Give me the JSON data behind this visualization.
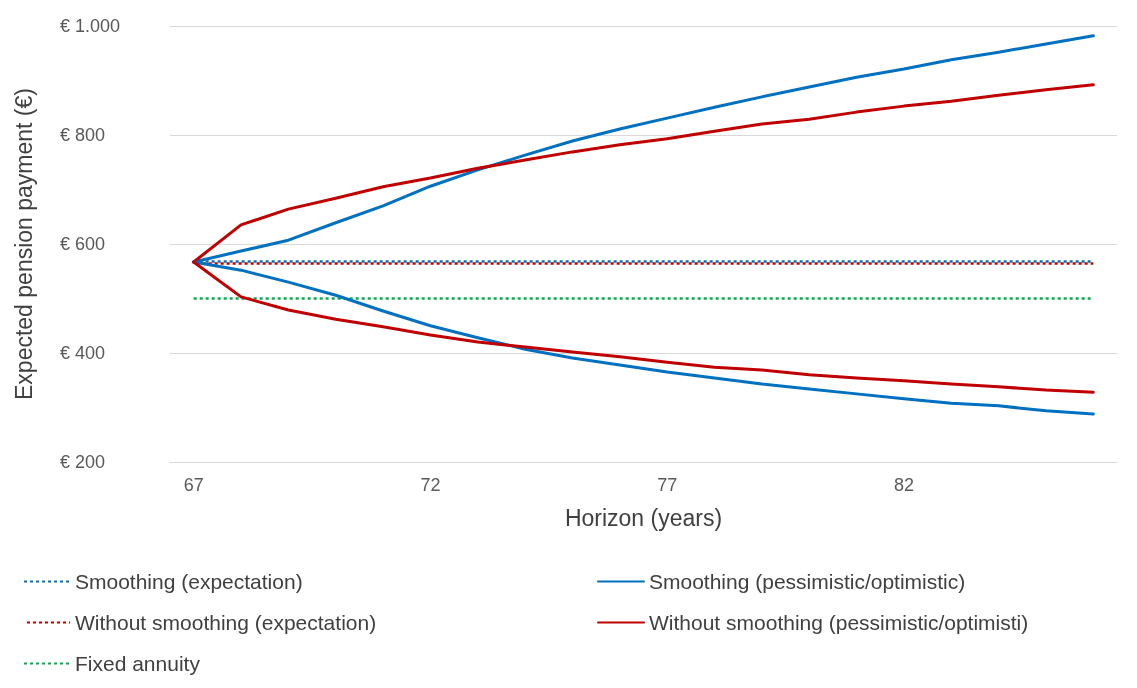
{
  "chart_data": {
    "type": "line",
    "xlabel": "Horizon (years)",
    "ylabel": "Expected pension payment (€)",
    "categories": [
      "67",
      null,
      null,
      null,
      null,
      "72",
      null,
      null,
      null,
      null,
      "77",
      null,
      null,
      null,
      null,
      "82",
      null,
      null,
      null,
      null
    ],
    "series": [
      {
        "name": "Smoothing (expectation)",
        "color": "#0070c0",
        "line_style": "dotted",
        "values": [
          568,
          568,
          568,
          568,
          568,
          568,
          568,
          568,
          568,
          568,
          568,
          568,
          568,
          568,
          568,
          568,
          568,
          568,
          568,
          568
        ]
      },
      {
        "name": "Smoothing (pessimistic/optimistic)",
        "color": "#0070c0",
        "line_style": "solid",
        "values": [
          567,
          587,
          607,
          639,
          670,
          706,
          736,
          763,
          789,
          811,
          831,
          851,
          870,
          888,
          906,
          921,
          938,
          952,
          967,
          982
        ]
      },
      {
        "name": "Without smoothing (expectation)",
        "color": "#c00000",
        "line_style": "dotted",
        "values": [
          564,
          564,
          564,
          564,
          564,
          564,
          564,
          564,
          564,
          564,
          564,
          564,
          564,
          564,
          564,
          564,
          564,
          564,
          564,
          564
        ]
      },
      {
        "name": "Without smoothing (pessimistic/optimisti)",
        "color": "#c00000",
        "line_style": "solid",
        "values": [
          567,
          635,
          664,
          684,
          705,
          721,
          739,
          754,
          769,
          782,
          793,
          807,
          820,
          829,
          842,
          853,
          862,
          873,
          883,
          892
        ]
      },
      {
        "name": "Fixed annuity",
        "color": "#00b050",
        "line_style": "dotted",
        "values": [
          500,
          500,
          500,
          500,
          500,
          500,
          500,
          500,
          500,
          500,
          500,
          500,
          500,
          500,
          500,
          500,
          500,
          500,
          500,
          500
        ]
      },
      {
        "color": "#0070c0",
        "line_style": "solid",
        "values": [
          567,
          552,
          530,
          506,
          477,
          450,
          428,
          407,
          391,
          378,
          365,
          354,
          343,
          334,
          325,
          316,
          308,
          303,
          294,
          288
        ]
      },
      {
        "color": "#c00000",
        "line_style": "solid",
        "values": [
          567,
          503,
          479,
          462,
          448,
          433,
          420,
          411,
          402,
          393,
          383,
          374,
          369,
          360,
          354,
          349,
          343,
          338,
          332,
          328
        ]
      }
    ],
    "ylim": [
      200,
      1000
    ],
    "yticks": [
      {
        "value": 200,
        "label": "€ 200"
      },
      {
        "value": 400,
        "label": "€ 400"
      },
      {
        "value": 600,
        "label": "€ 600"
      },
      {
        "value": 800,
        "label": "€ 800"
      },
      {
        "value": 1000,
        "label": "€ 1.000"
      }
    ],
    "grid": "y",
    "legend": "bottom",
    "marker": "none"
  }
}
